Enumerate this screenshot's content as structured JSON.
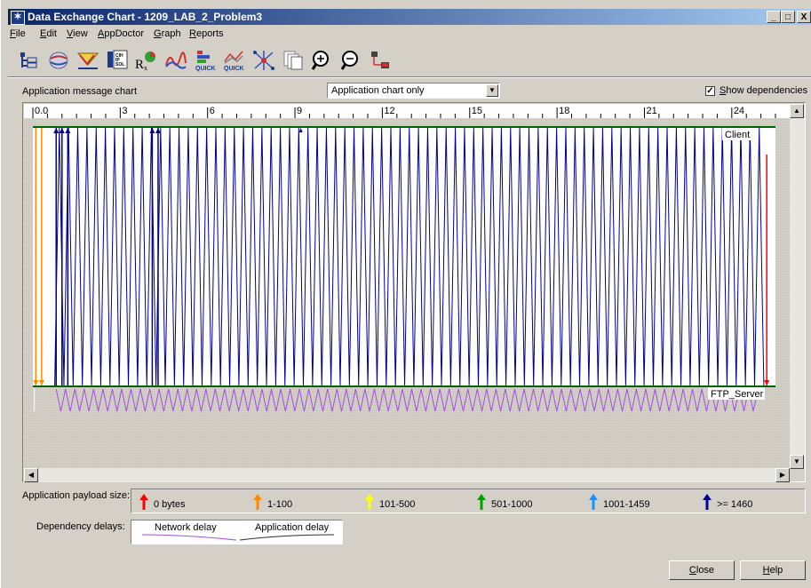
{
  "window": {
    "title": "Data Exchange Chart - 1209_LAB_2_Problem3",
    "controls": [
      "_",
      "□",
      "X"
    ]
  },
  "menu": [
    {
      "label": "File",
      "key": "F"
    },
    {
      "label": "Edit",
      "key": "E"
    },
    {
      "label": "View",
      "key": "V"
    },
    {
      "label": "AppDoctor",
      "key": "A"
    },
    {
      "label": "Graph",
      "key": "G"
    },
    {
      "label": "Reports",
      "key": "R"
    }
  ],
  "toolbar": {
    "icons": [
      "tree-view-icon",
      "protocol-icon",
      "filter-icon",
      "statistics-icon",
      "diagnosis-icon",
      "graph-icon",
      "quick-bar-icon",
      "quick-graph-icon",
      "network-icon",
      "pages-icon",
      "zoom-in-icon",
      "zoom-out-icon",
      "topology-icon"
    ],
    "quick_label": "QUICK"
  },
  "chart_header": {
    "label": "Application message chart",
    "view_select": "Application chart only",
    "show_dependencies_label": "Show dependencies",
    "show_dependencies_checked": true
  },
  "chart_data": {
    "type": "timeline",
    "x_ticks": [
      "0.0",
      "3",
      "6",
      "9",
      "12",
      "15",
      "18",
      "21",
      "24"
    ],
    "xlim": [
      0,
      25.5
    ],
    "tiers": [
      "Client",
      "FTP_Server"
    ],
    "colors": {
      "zero": "#ff0000",
      "small": "#ff8c00",
      "large": "#00008b",
      "network_delay": "#a050e0",
      "tier_line": "#006400"
    }
  },
  "legend": {
    "payload_label": "Application payload size:",
    "items": [
      {
        "label": "0 bytes",
        "color": "#ff0000"
      },
      {
        "label": "1-100",
        "color": "#ff8c00"
      },
      {
        "label": "101-500",
        "color": "#ffff00"
      },
      {
        "label": "501-1000",
        "color": "#00a000"
      },
      {
        "label": "1001-1459",
        "color": "#1e90ff"
      },
      {
        "label": ">= 1460",
        "color": "#00008b"
      }
    ],
    "delay_label": "Dependency delays:",
    "network_delay": "Network delay",
    "application_delay": "Application delay"
  },
  "buttons": {
    "close": "Close",
    "help": "Help"
  }
}
